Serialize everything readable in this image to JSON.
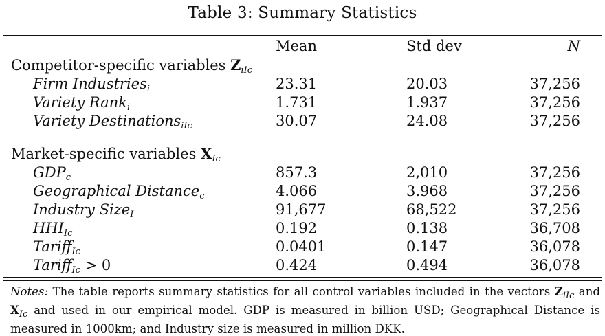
{
  "caption": "Table 3: Summary Statistics",
  "columns": [
    "Mean",
    "Std dev",
    "N"
  ],
  "groups": [
    {
      "label": "Competitor-specific variables",
      "symbol": "Z",
      "symbol_sub": "iIc",
      "rows": [
        {
          "name": "Firm Industries",
          "sub": "i",
          "mean": "23.31",
          "sd": "20.03",
          "n": "37,256"
        },
        {
          "name": "Variety Rank",
          "sub": "i",
          "mean": "1.731",
          "sd": "1.937",
          "n": "37,256"
        },
        {
          "name": "Variety Destinations",
          "sub": "iIc",
          "mean": "30.07",
          "sd": "24.08",
          "n": "37,256"
        }
      ]
    },
    {
      "label": "Market-specific variables",
      "symbol": "X",
      "symbol_sub": "Ic",
      "rows": [
        {
          "name": "GDP",
          "sub": "c",
          "mean": "857.3",
          "sd": "2,010",
          "n": "37,256"
        },
        {
          "name": "Geographical Distance",
          "sub": "c",
          "mean": "4.066",
          "sd": "3.968",
          "n": "37,256"
        },
        {
          "name": "Industry Size",
          "sub": "I",
          "mean": "91,677",
          "sd": "68,522",
          "n": "37,256"
        },
        {
          "name": "HHI",
          "sub": "Ic",
          "mean": "0.192",
          "sd": "0.138",
          "n": "36,708"
        },
        {
          "name": "Tariff",
          "sub": "Ic",
          "mean": "0.0401",
          "sd": "0.147",
          "n": "36,078"
        },
        {
          "name": "Tariff",
          "sub": "Ic",
          "suffix": " > 0",
          "mean": "0.424",
          "sd": "0.494",
          "n": "36,078"
        }
      ]
    }
  ],
  "notes": {
    "label": "Notes:",
    "part1": " The table reports summary statistics for all control variables included in the vectors ",
    "z": "Z",
    "z_sub": "iIc",
    "and": " and ",
    "x": "X",
    "x_sub": "Ic",
    "part2": " and used in our empirical model. GDP is measured in billion USD; Geographical Distance is measured in 1000km; and Industry size is measured in million DKK."
  }
}
